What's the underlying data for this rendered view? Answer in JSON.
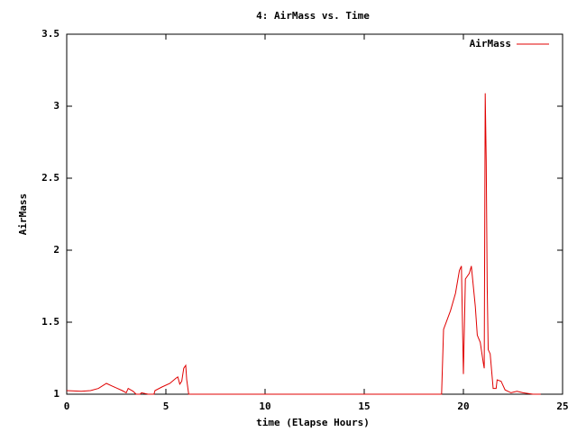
{
  "chart_data": {
    "type": "line",
    "title": "4: AirMass vs. Time",
    "x_label": "time (Elapse Hours)",
    "y_label": "AirMass",
    "xlim": [
      0,
      25
    ],
    "ylim": [
      1,
      3.5
    ],
    "xticks": [
      0,
      5,
      10,
      15,
      20,
      25
    ],
    "yticks": [
      1,
      1.5,
      2,
      2.5,
      3,
      3.5
    ],
    "legend": "top-right",
    "series": [
      {
        "name": "AirMass",
        "color": "#e00000",
        "x": [
          0,
          0.73,
          1.2,
          1.6,
          2.0,
          2.3,
          2.8,
          3.0,
          3.1,
          3.35,
          3.5,
          3.7,
          3.77,
          4.1,
          4.4,
          4.45,
          4.8,
          5.2,
          5.5,
          5.6,
          5.7,
          5.8,
          5.9,
          6.0,
          6.05,
          6.15,
          18.9,
          19.0,
          19.35,
          19.6,
          19.8,
          19.9,
          20.0,
          20.1,
          20.3,
          20.4,
          20.6,
          20.7,
          20.85,
          21.0,
          21.05,
          21.1,
          21.15,
          21.2,
          21.25,
          21.35,
          21.5,
          21.65,
          21.7,
          21.9,
          22.1,
          22.4,
          22.7,
          23.0,
          23.5,
          23.9
        ],
        "values": [
          1.025,
          1.02,
          1.025,
          1.04,
          1.075,
          1.056,
          1.025,
          1.01,
          1.04,
          1.02,
          1.0,
          1.0,
          1.01,
          1.0,
          1.0,
          1.025,
          1.05,
          1.075,
          1.11,
          1.12,
          1.07,
          1.09,
          1.18,
          1.2,
          1.1,
          1.0,
          1.0,
          1.45,
          1.58,
          1.7,
          1.86,
          1.89,
          1.14,
          1.8,
          1.84,
          1.89,
          1.61,
          1.41,
          1.36,
          1.22,
          1.18,
          3.09,
          2.62,
          1.75,
          1.31,
          1.28,
          1.04,
          1.04,
          1.1,
          1.09,
          1.03,
          1.01,
          1.02,
          1.01,
          1.0,
          1.0
        ]
      }
    ]
  }
}
